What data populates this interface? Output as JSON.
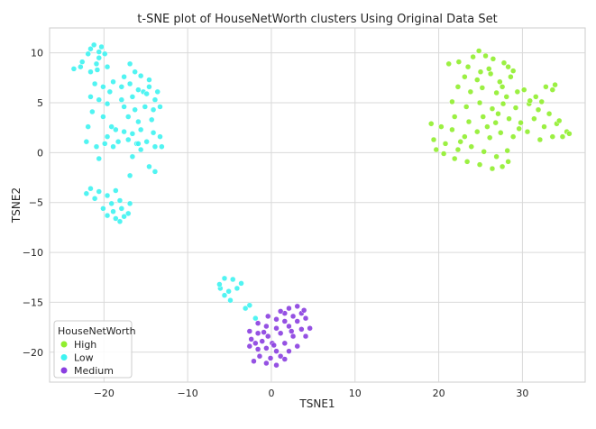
{
  "chart_data": {
    "type": "scatter",
    "title": "t-SNE plot of HouseNetWorth clusters Using Original Data Set",
    "xlabel": "TSNE1",
    "ylabel": "TSNE2",
    "xlim": [
      -26.5,
      37.5
    ],
    "ylim": [
      -23,
      12.5
    ],
    "x_ticks": [
      -20,
      -10,
      0,
      10,
      20,
      30
    ],
    "y_ticks": [
      10,
      5,
      0,
      -5,
      -10,
      -15,
      -20
    ],
    "x_tick_labels": [
      "−20",
      "−10",
      "0",
      "10",
      "20",
      "30"
    ],
    "y_tick_labels": [
      "10",
      "5",
      "0",
      "−5",
      "−10",
      "−15",
      "−20"
    ],
    "grid": true,
    "legend": {
      "title": "HouseNetWorth",
      "placement": "lower-left"
    },
    "series": [
      {
        "name": "High",
        "color": "#90ee2e",
        "points": [
          [
            21.2,
            8.9
          ],
          [
            22.4,
            9.1
          ],
          [
            23.5,
            8.6
          ],
          [
            24.8,
            10.2
          ],
          [
            25.6,
            9.7
          ],
          [
            26.5,
            9.4
          ],
          [
            27.8,
            9.0
          ],
          [
            28.3,
            8.6
          ],
          [
            23.1,
            7.6
          ],
          [
            24.6,
            7.3
          ],
          [
            26.2,
            7.9
          ],
          [
            27.3,
            7.1
          ],
          [
            28.6,
            7.6
          ],
          [
            22.3,
            6.6
          ],
          [
            23.8,
            6.1
          ],
          [
            25.2,
            6.5
          ],
          [
            26.9,
            6.0
          ],
          [
            28.1,
            5.6
          ],
          [
            29.4,
            6.1
          ],
          [
            30.2,
            6.3
          ],
          [
            31.6,
            5.6
          ],
          [
            32.8,
            6.6
          ],
          [
            33.6,
            6.3
          ],
          [
            21.6,
            5.1
          ],
          [
            23.3,
            4.6
          ],
          [
            24.9,
            5.0
          ],
          [
            26.4,
            4.4
          ],
          [
            27.7,
            4.9
          ],
          [
            29.2,
            4.5
          ],
          [
            30.8,
            4.9
          ],
          [
            31.9,
            4.3
          ],
          [
            33.2,
            3.9
          ],
          [
            21.9,
            3.6
          ],
          [
            23.6,
            3.1
          ],
          [
            25.3,
            3.6
          ],
          [
            26.8,
            3.0
          ],
          [
            28.4,
            3.4
          ],
          [
            29.8,
            3.0
          ],
          [
            31.4,
            3.4
          ],
          [
            32.6,
            2.6
          ],
          [
            34.1,
            2.9
          ],
          [
            35.3,
            2.1
          ],
          [
            19.1,
            2.9
          ],
          [
            20.3,
            2.6
          ],
          [
            21.6,
            2.3
          ],
          [
            23.1,
            1.6
          ],
          [
            24.6,
            2.1
          ],
          [
            26.1,
            1.5
          ],
          [
            27.4,
            2.0
          ],
          [
            28.9,
            1.6
          ],
          [
            30.6,
            2.1
          ],
          [
            32.1,
            1.3
          ],
          [
            33.6,
            1.6
          ],
          [
            34.8,
            1.6
          ],
          [
            19.4,
            1.3
          ],
          [
            20.8,
            0.9
          ],
          [
            22.3,
            0.3
          ],
          [
            23.9,
            0.6
          ],
          [
            25.4,
            0.1
          ],
          [
            26.9,
            -0.4
          ],
          [
            28.2,
            0.2
          ],
          [
            20.6,
            -0.1
          ],
          [
            21.9,
            -0.6
          ],
          [
            23.4,
            -0.9
          ],
          [
            24.9,
            -1.2
          ],
          [
            26.4,
            -1.6
          ],
          [
            27.6,
            -1.4
          ],
          [
            28.3,
            -0.9
          ],
          [
            24.1,
            9.6
          ],
          [
            26.0,
            8.4
          ],
          [
            28.9,
            8.2
          ],
          [
            30.9,
            5.2
          ],
          [
            32.3,
            5.1
          ],
          [
            34.4,
            3.2
          ],
          [
            35.6,
            1.9
          ],
          [
            19.7,
            0.3
          ],
          [
            22.6,
            1.1
          ],
          [
            25.8,
            2.6
          ],
          [
            27.1,
            3.9
          ],
          [
            29.6,
            2.4
          ],
          [
            25.0,
            8.1
          ],
          [
            27.6,
            6.6
          ],
          [
            33.9,
            6.8
          ]
        ]
      },
      {
        "name": "Low",
        "color": "#3ef3f1",
        "points": [
          [
            -21.2,
            10.8
          ],
          [
            -20.3,
            10.6
          ],
          [
            -21.9,
            9.9
          ],
          [
            -20.6,
            9.5
          ],
          [
            -19.9,
            9.9
          ],
          [
            -22.8,
            8.6
          ],
          [
            -21.6,
            8.1
          ],
          [
            -20.8,
            8.3
          ],
          [
            -23.6,
            8.4
          ],
          [
            -17.6,
            7.6
          ],
          [
            -16.3,
            8.1
          ],
          [
            -15.6,
            7.7
          ],
          [
            -14.6,
            7.3
          ],
          [
            -18.9,
            7.1
          ],
          [
            -17.9,
            6.6
          ],
          [
            -16.9,
            6.9
          ],
          [
            -15.9,
            6.3
          ],
          [
            -14.6,
            6.6
          ],
          [
            -13.6,
            6.1
          ],
          [
            -21.1,
            6.9
          ],
          [
            -20.1,
            6.6
          ],
          [
            -19.3,
            6.1
          ],
          [
            -16.6,
            5.6
          ],
          [
            -15.3,
            6.1
          ],
          [
            -13.9,
            5.3
          ],
          [
            -21.6,
            5.6
          ],
          [
            -20.6,
            5.3
          ],
          [
            -19.6,
            4.9
          ],
          [
            -17.6,
            4.6
          ],
          [
            -16.3,
            4.3
          ],
          [
            -15.1,
            4.6
          ],
          [
            -14.1,
            4.3
          ],
          [
            -13.3,
            4.6
          ],
          [
            -21.4,
            4.1
          ],
          [
            -20.1,
            3.6
          ],
          [
            -17.1,
            3.6
          ],
          [
            -15.9,
            3.1
          ],
          [
            -14.3,
            3.3
          ],
          [
            -21.9,
            2.6
          ],
          [
            -18.6,
            2.3
          ],
          [
            -17.6,
            2.1
          ],
          [
            -16.6,
            1.9
          ],
          [
            -15.6,
            2.3
          ],
          [
            -14.1,
            2.0
          ],
          [
            -13.3,
            1.6
          ],
          [
            -19.6,
            1.6
          ],
          [
            -18.3,
            1.1
          ],
          [
            -17.1,
            1.3
          ],
          [
            -16.1,
            0.9
          ],
          [
            -14.9,
            1.1
          ],
          [
            -13.9,
            0.6
          ],
          [
            -22.1,
            1.1
          ],
          [
            -20.9,
            0.6
          ],
          [
            -19.9,
            0.9
          ],
          [
            -18.9,
            0.6
          ],
          [
            -15.6,
            0.3
          ],
          [
            -13.1,
            0.6
          ],
          [
            -20.6,
            -0.6
          ],
          [
            -16.6,
            -0.4
          ],
          [
            -14.6,
            -1.4
          ],
          [
            -13.9,
            -1.9
          ],
          [
            -16.9,
            -2.3
          ],
          [
            -21.6,
            -3.6
          ],
          [
            -20.6,
            -3.9
          ],
          [
            -19.6,
            -4.3
          ],
          [
            -18.6,
            -3.8
          ],
          [
            -21.1,
            -4.6
          ],
          [
            -19.1,
            -5.1
          ],
          [
            -18.1,
            -4.8
          ],
          [
            -16.9,
            -5.1
          ],
          [
            -22.1,
            -4.1
          ],
          [
            -20.1,
            -5.6
          ],
          [
            -18.9,
            -5.9
          ],
          [
            -17.9,
            -5.6
          ],
          [
            -17.1,
            -6.1
          ],
          [
            -18.6,
            -6.6
          ],
          [
            -19.6,
            -6.3
          ],
          [
            -18.1,
            -6.9
          ],
          [
            -17.6,
            -6.4
          ],
          [
            -20.9,
            8.9
          ],
          [
            -19.6,
            8.6
          ],
          [
            -16.9,
            8.9
          ],
          [
            -22.6,
            9.1
          ],
          [
            -14.9,
            5.9
          ],
          [
            -17.9,
            5.3
          ],
          [
            -15.9,
            0.9
          ],
          [
            -19.1,
            2.6
          ],
          [
            -21.6,
            10.4
          ],
          [
            -20.6,
            10.1
          ],
          [
            -5.6,
            -12.6
          ],
          [
            -4.6,
            -12.7
          ],
          [
            -6.1,
            -13.6
          ],
          [
            -5.1,
            -13.9
          ],
          [
            -4.1,
            -13.6
          ],
          [
            -3.6,
            -13.1
          ],
          [
            -5.6,
            -14.3
          ],
          [
            -4.9,
            -14.8
          ],
          [
            -3.1,
            -15.6
          ],
          [
            -1.9,
            -16.6
          ],
          [
            -2.6,
            -15.3
          ],
          [
            -6.2,
            -13.2
          ]
        ]
      },
      {
        "name": "Medium",
        "color": "#8a3ee0",
        "points": [
          [
            2.1,
            -15.6
          ],
          [
            3.1,
            -15.4
          ],
          [
            1.6,
            -16.1
          ],
          [
            2.6,
            -16.4
          ],
          [
            3.6,
            -16.1
          ],
          [
            -0.4,
            -16.4
          ],
          [
            0.6,
            -16.7
          ],
          [
            1.6,
            -16.9
          ],
          [
            3.1,
            -16.9
          ],
          [
            4.1,
            -16.6
          ],
          [
            -1.6,
            -17.1
          ],
          [
            -0.6,
            -17.4
          ],
          [
            0.6,
            -17.6
          ],
          [
            2.1,
            -17.4
          ],
          [
            3.6,
            -17.7
          ],
          [
            4.6,
            -17.6
          ],
          [
            -2.6,
            -17.9
          ],
          [
            -1.6,
            -18.1
          ],
          [
            -0.4,
            -18.4
          ],
          [
            1.1,
            -18.1
          ],
          [
            2.6,
            -18.4
          ],
          [
            4.1,
            -18.4
          ],
          [
            -2.4,
            -18.7
          ],
          [
            -1.1,
            -18.9
          ],
          [
            0.1,
            -19.1
          ],
          [
            1.6,
            -19.1
          ],
          [
            3.1,
            -19.4
          ],
          [
            -2.6,
            -19.4
          ],
          [
            -1.6,
            -19.7
          ],
          [
            -0.6,
            -19.6
          ],
          [
            0.6,
            -19.9
          ],
          [
            2.1,
            -19.9
          ],
          [
            -1.4,
            -20.4
          ],
          [
            -0.1,
            -20.6
          ],
          [
            1.1,
            -20.4
          ],
          [
            -2.1,
            -20.9
          ],
          [
            -0.6,
            -21.1
          ],
          [
            0.6,
            -21.3
          ],
          [
            1.6,
            -20.7
          ],
          [
            -1.9,
            -19.1
          ],
          [
            2.4,
            -17.9
          ],
          [
            3.9,
            -15.8
          ],
          [
            1.1,
            -15.9
          ],
          [
            -0.9,
            -18.0
          ],
          [
            0.3,
            -19.3
          ]
        ]
      }
    ]
  }
}
